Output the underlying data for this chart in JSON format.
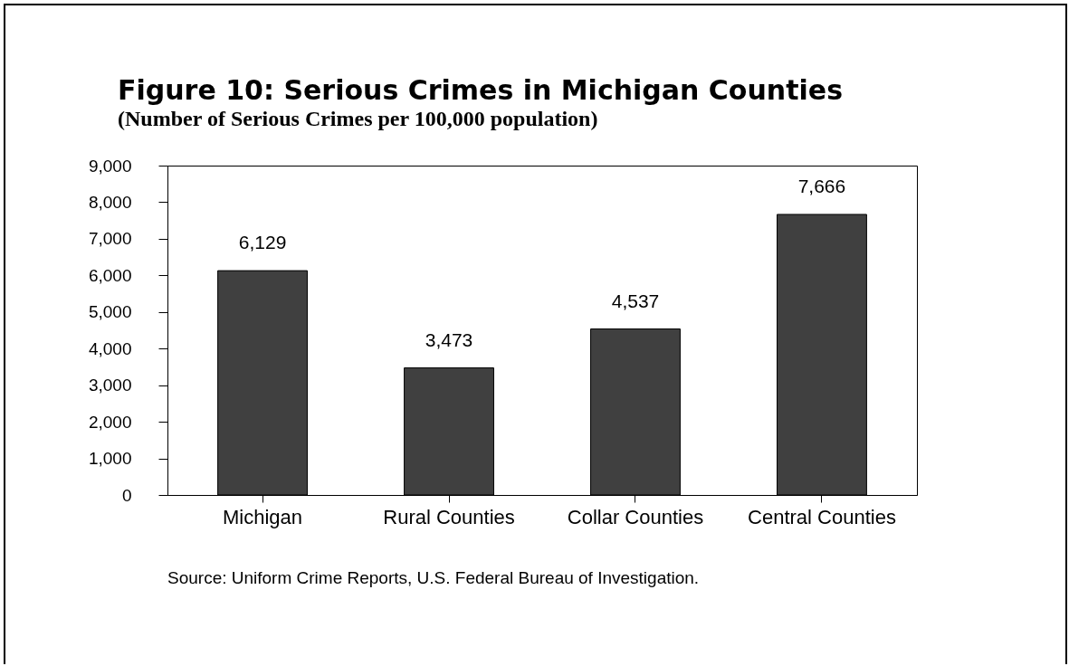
{
  "chart_data": {
    "type": "bar",
    "title": "Figure 10: Serious Crimes in Michigan Counties",
    "subtitle": "(Number of Serious Crimes per 100,000 population)",
    "categories": [
      "Michigan",
      "Rural Counties",
      "Collar Counties",
      "Central Counties"
    ],
    "values": [
      6129,
      3473,
      4537,
      7666
    ],
    "color": "#404040",
    "ylim": [
      0,
      9000
    ],
    "yticks": [
      {
        "value": 0,
        "label": "0"
      },
      {
        "value": 1000,
        "label": "1,000"
      },
      {
        "value": 2000,
        "label": "2,000"
      },
      {
        "value": 3000,
        "label": "3,000"
      },
      {
        "value": 4000,
        "label": "4,000"
      },
      {
        "value": 5000,
        "label": "5,000"
      },
      {
        "value": 6000,
        "label": "6,000"
      },
      {
        "value": 7000,
        "label": "7,000"
      },
      {
        "value": 8000,
        "label": "8,000"
      },
      {
        "value": 9000,
        "label": "9,000"
      }
    ],
    "value_labels": [
      "6,129",
      "3,473",
      "4,537",
      "7,666"
    ],
    "grid": false,
    "annotations": [
      "Source: Uniform Crime Reports, U.S. Federal Bureau of Investigation."
    ]
  }
}
